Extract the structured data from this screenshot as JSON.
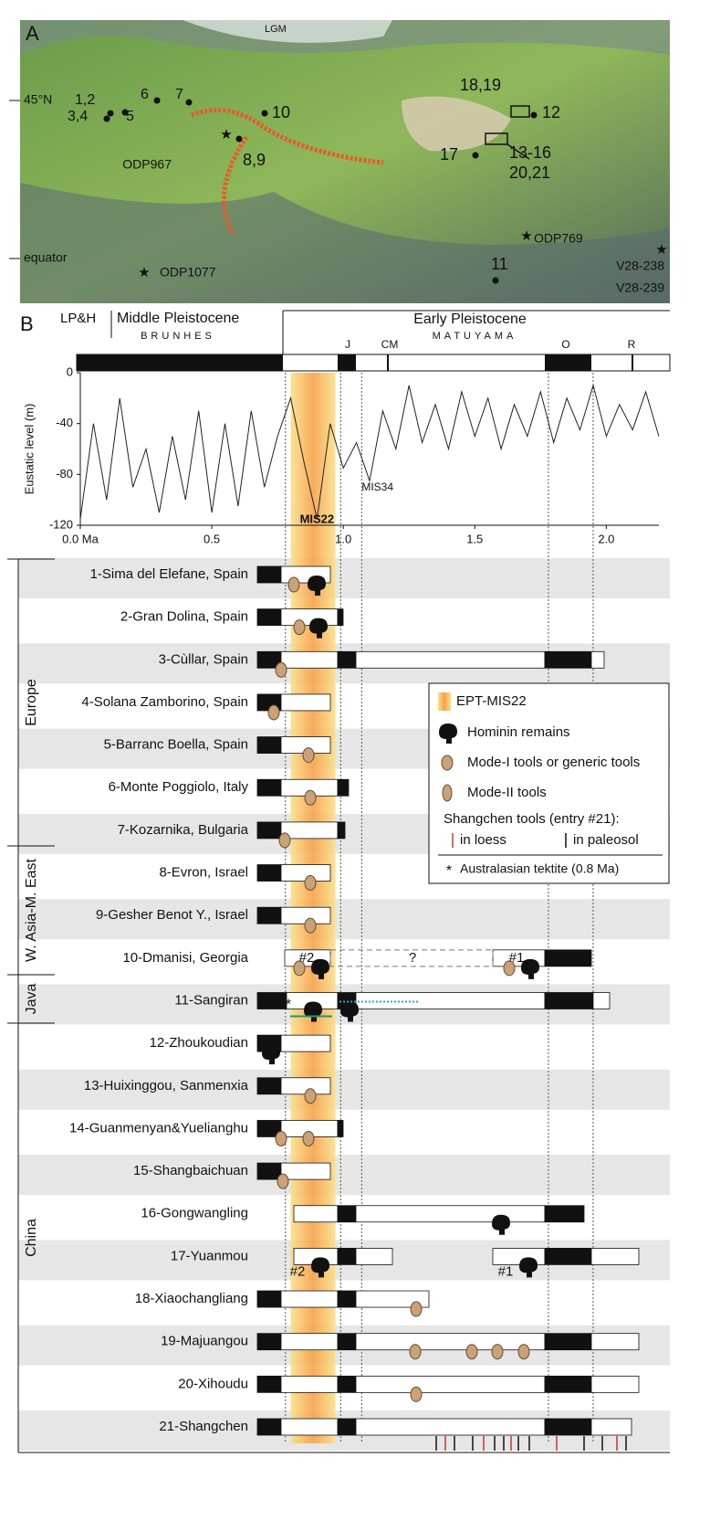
{
  "panel_a": {
    "label": "A",
    "lgm": "LGM",
    "latitudes": [
      "45°N",
      "equator"
    ],
    "sites": [
      "1,2",
      "3,4",
      "5",
      "6",
      "7",
      "8,9",
      "10",
      "18,19",
      "12",
      "13-16",
      "20,21",
      "17",
      "11"
    ],
    "cores": [
      "ODP967",
      "ODP769",
      "ODP1077",
      "V28-238",
      "V28-239"
    ]
  },
  "panel_b": {
    "label": "B",
    "stages": [
      "LP&H",
      "Middle Pleistocene",
      "Early Pleistocene"
    ],
    "chrons": [
      "BRUNHES",
      "MATUYAMA"
    ],
    "subchrons": [
      "J",
      "CM",
      "O",
      "R"
    ]
  },
  "chart_data": {
    "type": "line",
    "y_label": "Eustatic level (m)",
    "annotations": [
      "MIS22",
      "MIS34"
    ],
    "x": [
      0,
      0.05,
      0.1,
      0.15,
      0.2,
      0.25,
      0.3,
      0.35,
      0.4,
      0.45,
      0.5,
      0.55,
      0.6,
      0.65,
      0.7,
      0.75,
      0.8,
      0.85,
      0.9,
      0.95,
      1.0,
      1.05,
      1.1,
      1.15,
      1.2,
      1.25,
      1.3,
      1.35,
      1.4,
      1.45,
      1.5,
      1.55,
      1.6,
      1.65,
      1.7,
      1.75,
      1.8,
      1.85,
      1.9,
      1.95,
      2.0,
      2.05,
      2.1,
      2.15,
      2.2
    ],
    "values": [
      -115,
      -40,
      -100,
      -20,
      -90,
      -60,
      -110,
      -50,
      -100,
      -30,
      -110,
      -40,
      -105,
      -30,
      -90,
      -50,
      -20,
      -70,
      -115,
      -40,
      -75,
      -55,
      -85,
      -30,
      -60,
      -10,
      -55,
      -25,
      -60,
      -15,
      -50,
      -20,
      -60,
      -25,
      -50,
      -15,
      -55,
      -20,
      -45,
      -10,
      -50,
      -25,
      -45,
      -15,
      -50
    ],
    "color": "#222",
    "xlim": [
      0,
      2.2
    ],
    "xticks": [
      {
        "value": 0,
        "label": "0.0 Ma"
      },
      0.5,
      {
        "value": 1,
        "label": "1.0"
      },
      1.5,
      {
        "value": 2,
        "label": "2.0"
      }
    ],
    "ylim": [
      -120,
      0
    ],
    "yticks": [
      0,
      -40,
      -80,
      -120
    ]
  },
  "sites": {
    "groups": [
      "Europe",
      "W. Asia-M. East",
      "Java",
      "China"
    ],
    "rows": [
      "1-Sima del Elefane, Spain",
      "2-Gran Dolina, Spain",
      "3-Cùllar, Spain",
      "4-Solana Zamborino, Spain",
      "5-Barranc Boella, Spain",
      "6-Monte Poggiolo, Italy",
      "7-Kozarnika, Bulgaria",
      "8-Evron, Israel",
      "9-Gesher Benot Y., Israel",
      "10-Dmanisi, Georgia",
      "11-Sangiran",
      "12-Zhoukoudian",
      "13-Huixinggou, Sanmenxia",
      "14-Guanmenyan&Yuelianghu",
      "15-Shangbaichuan",
      "16-Gongwangling",
      "17-Yuanmou",
      "18-Xiaochangliang",
      "19-Majuangou",
      "20-Xihoudu",
      "21-Shangchen"
    ],
    "notes": [
      "#2",
      "#1",
      "?",
      "#2",
      "#1"
    ]
  },
  "legend": {
    "band": "EPT-MIS22",
    "hominin": "Hominin remains",
    "mode1": "Mode-I tools or generic tools",
    "mode2": "Mode-II tools",
    "shangchen": "Shangchen tools (entry #21):",
    "loess": "in loess",
    "paleosol": "in paleosol",
    "tektite": "Australasian tektite (0.8 Ma)"
  }
}
